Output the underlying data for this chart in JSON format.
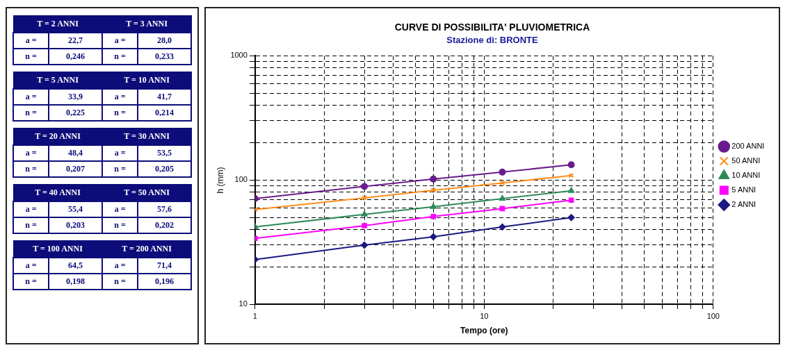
{
  "chart_data": [
    {
      "type": "other",
      "annotations": [
        "T = 2 ANNI",
        "T = 3 ANNI",
        "a =",
        "22,7",
        "a =",
        "28,0",
        "n =",
        "0,246",
        "n =",
        "0,233",
        "T = 5 ANNI",
        "T = 10 ANNI",
        "a =",
        "33,9",
        "a =",
        "41,7",
        "n =",
        "0,225",
        "n =",
        "0,214",
        "T = 20 ANNI",
        "T = 30 ANNI",
        "a =",
        "48,4",
        "a =",
        "53,5",
        "n =",
        "0,207",
        "n =",
        "0,205",
        "T = 40 ANNI",
        "T = 50 ANNI",
        "a =",
        "55,4",
        "a =",
        "57,6",
        "n =",
        "0,203",
        "n =",
        "0,202",
        "T = 100 ANNI",
        "T = 200 ANNI",
        "a =",
        "64,5",
        "a =",
        "71,4",
        "n =",
        "0,198",
        "n =",
        "0,196"
      ]
    },
    {
      "type": "line",
      "title": "CURVE DI POSSIBILITA' PLUVIOMETRICA",
      "subtitle": "Stazione di: BRONTE",
      "xlabel": "Tempo (ore)",
      "ylabel": "h (mm)",
      "x": [
        1,
        3,
        6,
        12,
        24
      ],
      "series": [
        {
          "name": "200 ANNI",
          "color": "#6a1b8e",
          "marker": "circle",
          "values": [
            71,
            89,
            102,
            116,
            133
          ]
        },
        {
          "name": "50 ANNI",
          "color": "#ff8c1a",
          "marker": "cross",
          "values": [
            58,
            72,
            83,
            95,
            109
          ]
        },
        {
          "name": "10 ANNI",
          "color": "#2e8b57",
          "marker": "triangle",
          "values": [
            42,
            53,
            61,
            71,
            82
          ]
        },
        {
          "name": "5 ANNI",
          "color": "#ff00ff",
          "marker": "square",
          "values": [
            34,
            43,
            51,
            59,
            69
          ]
        },
        {
          "name": "2 ANNI",
          "color": "#1a1a80",
          "marker": "diamond",
          "values": [
            23,
            30,
            35,
            42,
            50
          ]
        }
      ],
      "log": "xy",
      "xlim": [
        1,
        100
      ],
      "ylim": [
        10,
        1000
      ],
      "xticks": [
        1,
        {
          "value": 2,
          "label": null
        },
        {
          "value": 3,
          "label": null
        },
        {
          "value": 4,
          "label": null
        },
        {
          "value": 5,
          "label": null
        },
        {
          "value": 6,
          "label": null
        },
        {
          "value": 7,
          "label": null
        },
        {
          "value": 8,
          "label": null
        },
        {
          "value": 9,
          "label": null
        },
        10,
        {
          "value": 20,
          "label": null
        },
        {
          "value": 30,
          "label": null
        },
        {
          "value": 40,
          "label": null
        },
        {
          "value": 50,
          "label": null
        },
        {
          "value": 60,
          "label": null
        },
        {
          "value": 70,
          "label": null
        },
        {
          "value": 80,
          "label": null
        },
        {
          "value": 90,
          "label": null
        },
        100
      ],
      "yticks": [
        10,
        {
          "value": 20,
          "label": null
        },
        {
          "value": 30,
          "label": null
        },
        {
          "value": 40,
          "label": null
        },
        {
          "value": 50,
          "label": null
        },
        {
          "value": 60,
          "label": null
        },
        {
          "value": 70,
          "label": null
        },
        {
          "value": 80,
          "label": null
        },
        {
          "value": 90,
          "label": null
        },
        100,
        {
          "value": 200,
          "label": null
        },
        {
          "value": 300,
          "label": null
        },
        {
          "value": 400,
          "label": null
        },
        {
          "value": 500,
          "label": null
        },
        {
          "value": 600,
          "label": null
        },
        {
          "value": 700,
          "label": null
        },
        {
          "value": 800,
          "label": null
        },
        {
          "value": 900,
          "label": null
        },
        1000
      ],
      "grid": true,
      "legend": "right",
      "line_style": "solid"
    }
  ]
}
